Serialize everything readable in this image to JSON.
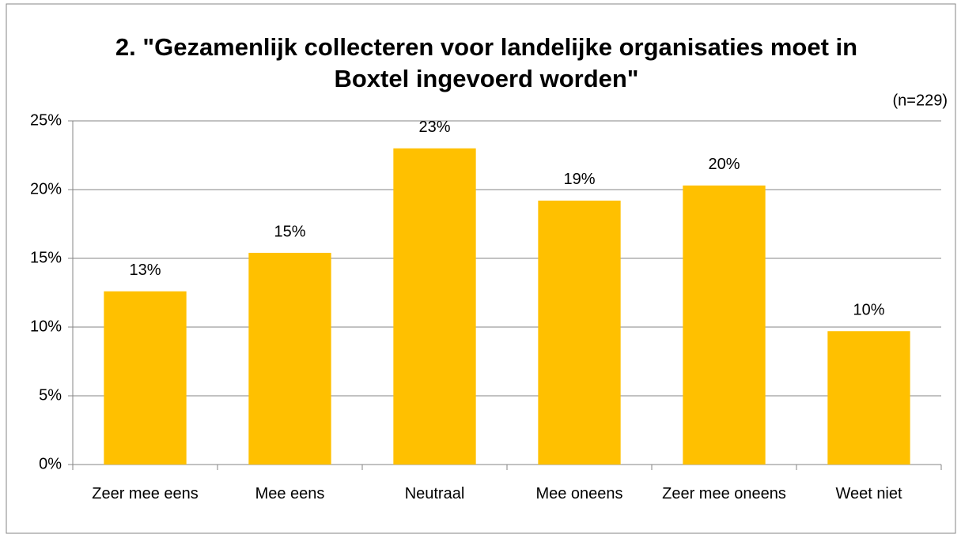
{
  "chart_data": {
    "type": "bar",
    "title": "2. \"Gezamenlijk collecteren voor landelijke organisaties moet in Boxtel ingevoerd worden\"",
    "annotation": "(n=229)",
    "categories": [
      "Zeer mee eens",
      "Mee eens",
      "Neutraal",
      "Mee oneens",
      "Zeer mee oneens",
      "Weet niet"
    ],
    "values": [
      12.6,
      15.4,
      23.0,
      19.2,
      20.3,
      9.7
    ],
    "value_labels": [
      "13%",
      "15%",
      "23%",
      "19%",
      "20%",
      "10%"
    ],
    "color": "#ffc000",
    "ylim": [
      0,
      25
    ],
    "yticks": [
      {
        "value": 0,
        "label": "0%"
      },
      {
        "value": 5,
        "label": "5%"
      },
      {
        "value": 10,
        "label": "10%"
      },
      {
        "value": 15,
        "label": "15%"
      },
      {
        "value": 20,
        "label": "20%"
      },
      {
        "value": 25,
        "label": "25%"
      }
    ],
    "grid": true
  }
}
